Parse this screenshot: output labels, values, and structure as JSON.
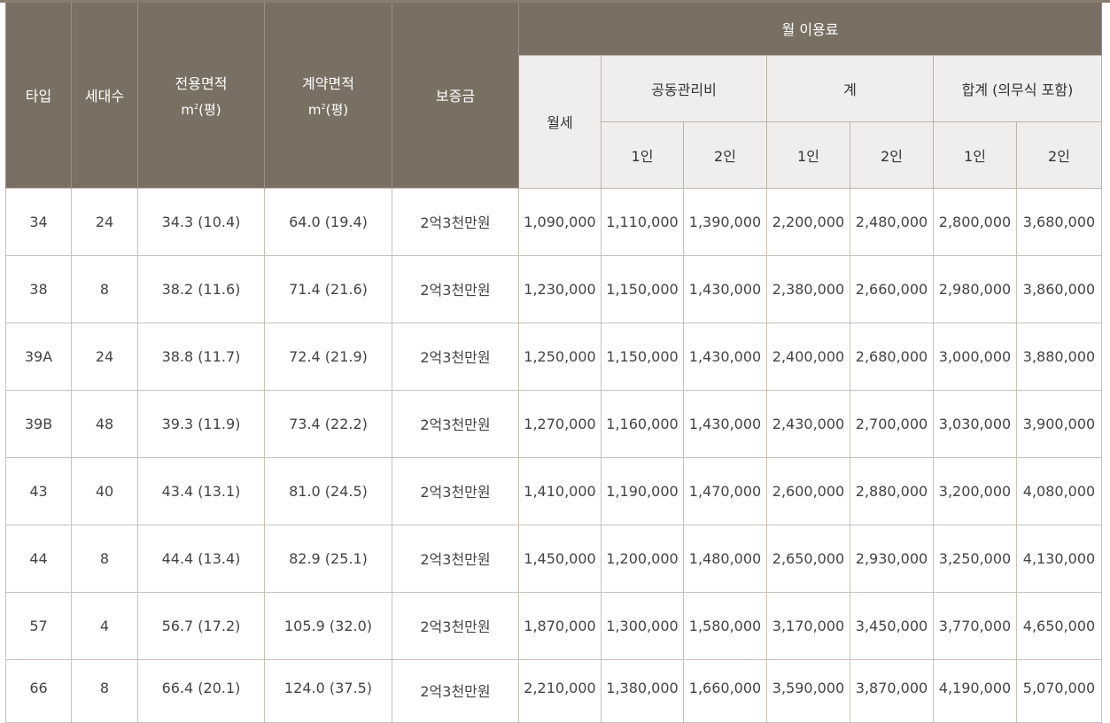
{
  "header": {
    "type": "타입",
    "units": "세대수",
    "exclusive_area": "전용면적",
    "contract_area": "계약면적",
    "area_unit_prefix": "m",
    "area_unit_sup": "2",
    "area_unit_suffix": "(평)",
    "deposit": "보증금",
    "monthly_fee": "월 이용료",
    "rent": "월세",
    "mgmt_fee": "공동관리비",
    "subtotal": "계",
    "total": "합계 (의무식 포함)",
    "p1": "1인",
    "p2": "2인"
  },
  "rows": [
    {
      "type": "34",
      "units": "24",
      "exclusive": "34.3 (10.4)",
      "contract": "64.0 (19.4)",
      "deposit": "2억3천만원",
      "rent": "1,090,000",
      "mgmt1": "1,110,000",
      "mgmt2": "1,390,000",
      "sum1": "2,200,000",
      "sum2": "2,480,000",
      "total1": "2,800,000",
      "total2": "3,680,000"
    },
    {
      "type": "38",
      "units": "8",
      "exclusive": "38.2 (11.6)",
      "contract": "71.4 (21.6)",
      "deposit": "2억3천만원",
      "rent": "1,230,000",
      "mgmt1": "1,150,000",
      "mgmt2": "1,430,000",
      "sum1": "2,380,000",
      "sum2": "2,660,000",
      "total1": "2,980,000",
      "total2": "3,860,000"
    },
    {
      "type": "39A",
      "units": "24",
      "exclusive": "38.8 (11.7)",
      "contract": "72.4 (21.9)",
      "deposit": "2억3천만원",
      "rent": "1,250,000",
      "mgmt1": "1,150,000",
      "mgmt2": "1,430,000",
      "sum1": "2,400,000",
      "sum2": "2,680,000",
      "total1": "3,000,000",
      "total2": "3,880,000"
    },
    {
      "type": "39B",
      "units": "48",
      "exclusive": "39.3 (11.9)",
      "contract": "73.4 (22.2)",
      "deposit": "2억3천만원",
      "rent": "1,270,000",
      "mgmt1": "1,160,000",
      "mgmt2": "1,430,000",
      "sum1": "2,430,000",
      "sum2": "2,700,000",
      "total1": "3,030,000",
      "total2": "3,900,000"
    },
    {
      "type": "43",
      "units": "40",
      "exclusive": "43.4 (13.1)",
      "contract": "81.0 (24.5)",
      "deposit": "2억3천만원",
      "rent": "1,410,000",
      "mgmt1": "1,190,000",
      "mgmt2": "1,470,000",
      "sum1": "2,600,000",
      "sum2": "2,880,000",
      "total1": "3,200,000",
      "total2": "4,080,000"
    },
    {
      "type": "44",
      "units": "8",
      "exclusive": "44.4 (13.4)",
      "contract": "82.9 (25.1)",
      "deposit": "2억3천만원",
      "rent": "1,450,000",
      "mgmt1": "1,200,000",
      "mgmt2": "1,480,000",
      "sum1": "2,650,000",
      "sum2": "2,930,000",
      "total1": "3,250,000",
      "total2": "4,130,000"
    },
    {
      "type": "57",
      "units": "4",
      "exclusive": "56.7 (17.2)",
      "contract": "105.9 (32.0)",
      "deposit": "2억3천만원",
      "rent": "1,870,000",
      "mgmt1": "1,300,000",
      "mgmt2": "1,580,000",
      "sum1": "3,170,000",
      "sum2": "3,450,000",
      "total1": "3,770,000",
      "total2": "4,650,000"
    },
    {
      "type": "66",
      "units": "8",
      "exclusive": "66.4 (20.1)",
      "contract": "124.0 (37.5)",
      "deposit": "2억3천만원",
      "rent": "2,210,000",
      "mgmt1": "1,380,000",
      "mgmt2": "1,660,000",
      "sum1": "3,590,000",
      "sum2": "3,870,000",
      "total1": "4,190,000",
      "total2": "5,070,000"
    }
  ]
}
